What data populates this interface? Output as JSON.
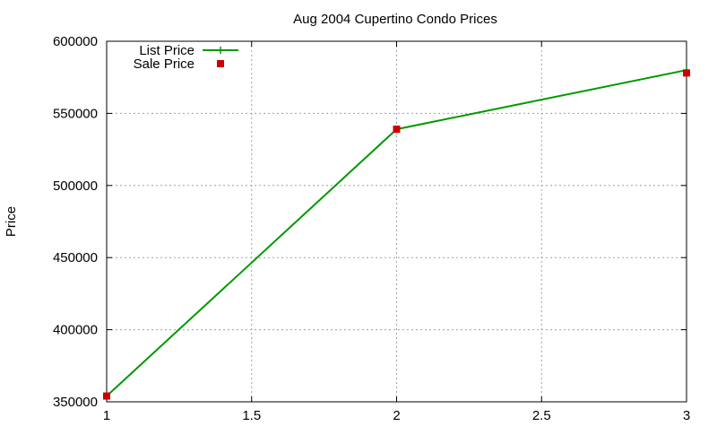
{
  "chart_data": {
    "type": "line",
    "title": "Aug 2004 Cupertino Condo Prices",
    "xlabel": "",
    "ylabel": "Price",
    "x": [
      1,
      2,
      3
    ],
    "xlim": [
      1,
      3
    ],
    "ylim": [
      350000,
      600000
    ],
    "xticks": [
      "1",
      "1.5",
      "2",
      "2.5",
      "3"
    ],
    "yticks": [
      "350000",
      "400000",
      "450000",
      "500000",
      "550000",
      "600000"
    ],
    "grid": true,
    "legend_position": "top-left",
    "series": [
      {
        "name": "List Price",
        "style": "line-with-points",
        "color": "#009900",
        "values": [
          354000,
          539000,
          580000
        ]
      },
      {
        "name": "Sale Price",
        "style": "points",
        "color": "#cc0000",
        "values": [
          354000,
          539000,
          578000
        ]
      }
    ]
  }
}
